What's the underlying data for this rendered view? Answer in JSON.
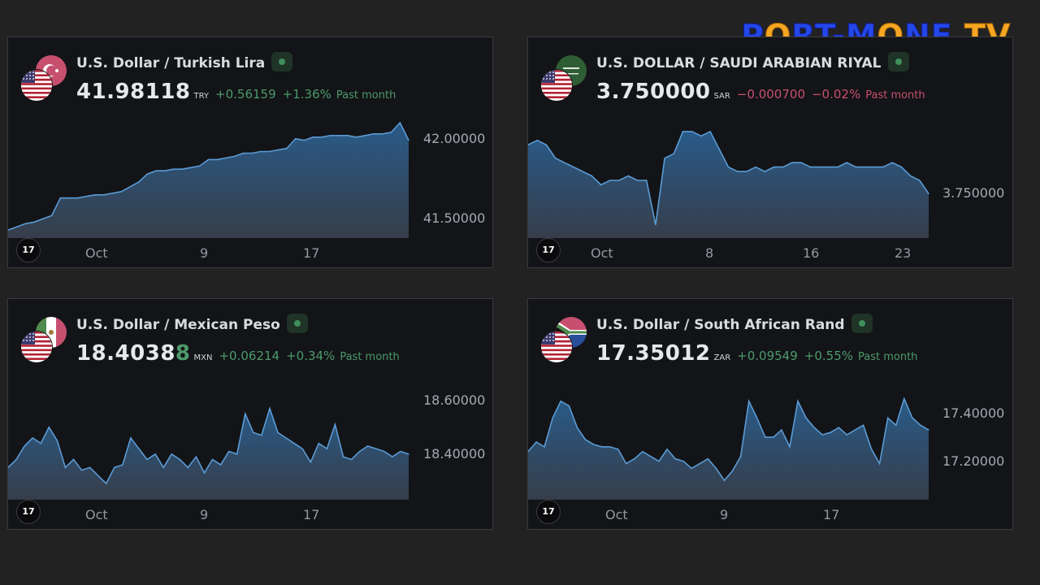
{
  "logo": {
    "part1": "P",
    "o": "O",
    "part2": "RT-M",
    "o2": "O",
    "part3": "NE",
    "part4": " TV"
  },
  "colors": {
    "up": "#4c9a6b",
    "down": "#c8506f",
    "line": "#5b9bd5"
  },
  "chart_data": [
    {
      "type": "area",
      "title": "U.S. Dollar / Turkish Lira",
      "price_main": "41.98118",
      "price_highlight": "",
      "currency": "TRY",
      "change": "+0.56159",
      "change_pct": "+1.36%",
      "period": "Past month",
      "direction": "up",
      "flag_back": "turkey-flag-icon",
      "flag_front": "usa-flag-icon",
      "x_ticks": [
        "Oct",
        "9",
        "17"
      ],
      "y_ticks": [
        "42.00000",
        "41.50000"
      ],
      "ylim": [
        41.38,
        42.1
      ],
      "values": [
        41.43,
        41.45,
        41.47,
        41.48,
        41.5,
        41.52,
        41.63,
        41.63,
        41.63,
        41.64,
        41.65,
        41.65,
        41.66,
        41.67,
        41.7,
        41.73,
        41.78,
        41.8,
        41.8,
        41.81,
        41.81,
        41.82,
        41.83,
        41.87,
        41.87,
        41.88,
        41.89,
        41.91,
        41.91,
        41.92,
        41.92,
        41.93,
        41.94,
        42.0,
        41.99,
        42.01,
        42.01,
        42.02,
        42.02,
        42.02,
        42.01,
        42.02,
        42.03,
        42.03,
        42.04,
        42.1,
        41.99
      ]
    },
    {
      "type": "area",
      "title": "U.S. DOLLAR / SAUDI ARABIAN RIYAL",
      "price_main": "3.750000",
      "price_highlight": "",
      "currency": "SAR",
      "change": "−0.000700",
      "change_pct": "−0.02%",
      "period": "Past month",
      "direction": "down",
      "flag_back": "saudi-flag-icon",
      "flag_front": "usa-flag-icon",
      "x_ticks": [
        "Oct",
        "8",
        "16",
        "23"
      ],
      "y_ticks": [
        "3.750000"
      ],
      "ylim": [
        3.749,
        3.7516
      ],
      "values": [
        3.7511,
        3.7512,
        3.7511,
        3.7508,
        3.7507,
        3.7506,
        3.7505,
        3.7504,
        3.7502,
        3.7503,
        3.7503,
        3.7504,
        3.7503,
        3.7503,
        3.7493,
        3.7508,
        3.7509,
        3.7514,
        3.7514,
        3.7513,
        3.7514,
        3.751,
        3.7506,
        3.7505,
        3.7505,
        3.7506,
        3.7505,
        3.7506,
        3.7506,
        3.7507,
        3.7507,
        3.7506,
        3.7506,
        3.7506,
        3.7506,
        3.7507,
        3.7506,
        3.7506,
        3.7506,
        3.7506,
        3.7507,
        3.7506,
        3.7504,
        3.7503,
        3.75
      ]
    },
    {
      "type": "area",
      "title": "U.S. Dollar / Mexican Peso",
      "price_main": "18.4038",
      "price_highlight": "8",
      "currency": "MXN",
      "change": "+0.06214",
      "change_pct": "+0.34%",
      "period": "Past month",
      "direction": "up",
      "flag_back": "mexico-flag-icon",
      "flag_front": "usa-flag-icon",
      "x_ticks": [
        "Oct",
        "9",
        "17"
      ],
      "y_ticks": [
        "18.60000",
        "18.40000"
      ],
      "ylim": [
        18.23,
        18.66
      ],
      "values": [
        18.35,
        18.38,
        18.43,
        18.46,
        18.44,
        18.5,
        18.45,
        18.35,
        18.38,
        18.34,
        18.35,
        18.32,
        18.29,
        18.35,
        18.36,
        18.46,
        18.42,
        18.38,
        18.4,
        18.35,
        18.4,
        18.38,
        18.35,
        18.39,
        18.33,
        18.38,
        18.36,
        18.41,
        18.4,
        18.55,
        18.48,
        18.47,
        18.57,
        18.48,
        18.46,
        18.44,
        18.42,
        18.37,
        18.44,
        18.42,
        18.51,
        18.39,
        18.38,
        18.41,
        18.43,
        18.42,
        18.41,
        18.39,
        18.41,
        18.4
      ]
    },
    {
      "type": "area",
      "title": "U.S. Dollar / South African Rand",
      "price_main": "17.35012",
      "price_highlight": "",
      "currency": "ZAR",
      "change": "+0.09549",
      "change_pct": "+0.55%",
      "period": "Past month",
      "direction": "up",
      "flag_back": "south-africa-flag-icon",
      "flag_front": "usa-flag-icon",
      "x_ticks": [
        "Oct",
        "9",
        "17"
      ],
      "y_ticks": [
        "17.40000",
        "17.20000"
      ],
      "ylim": [
        17.04,
        17.52
      ],
      "values": [
        17.24,
        17.28,
        17.26,
        17.38,
        17.45,
        17.43,
        17.34,
        17.29,
        17.27,
        17.26,
        17.26,
        17.25,
        17.19,
        17.21,
        17.24,
        17.22,
        17.2,
        17.25,
        17.21,
        17.2,
        17.17,
        17.19,
        17.21,
        17.17,
        17.12,
        17.16,
        17.22,
        17.45,
        17.38,
        17.3,
        17.3,
        17.33,
        17.26,
        17.45,
        17.38,
        17.34,
        17.31,
        17.32,
        17.34,
        17.31,
        17.33,
        17.35,
        17.25,
        17.19,
        17.38,
        17.35,
        17.46,
        17.38,
        17.35,
        17.33
      ]
    }
  ]
}
